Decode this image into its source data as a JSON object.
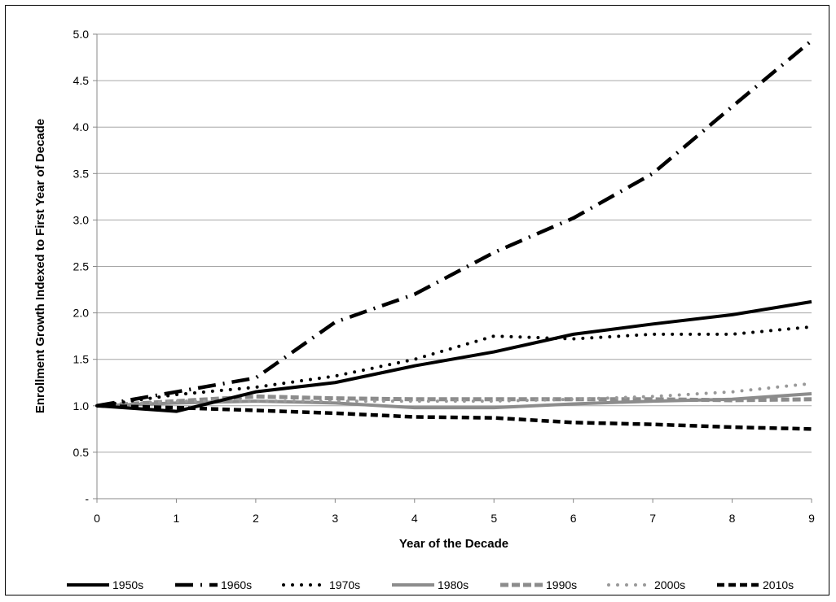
{
  "chart_data": {
    "type": "line",
    "xlabel": "Year of the Decade",
    "ylabel": "Enrollment Growth Indexed to First Year of Decade",
    "x": [
      0,
      1,
      2,
      3,
      4,
      5,
      6,
      7,
      8,
      9
    ],
    "xlim": [
      0,
      9
    ],
    "ylim": [
      0,
      5.0
    ],
    "y_ticks": [
      "-",
      "0.5",
      "1.0",
      "1.5",
      "2.0",
      "2.5",
      "3.0",
      "3.5",
      "4.0",
      "4.5",
      "5.0"
    ],
    "x_ticks": [
      "0",
      "1",
      "2",
      "3",
      "4",
      "5",
      "6",
      "7",
      "8",
      "9"
    ],
    "grid": "horizontal",
    "legend_position": "bottom",
    "series": [
      {
        "name": "1950s",
        "color": "#000000",
        "style": "solid",
        "values": [
          1.0,
          0.94,
          1.15,
          1.25,
          1.43,
          1.58,
          1.77,
          1.88,
          1.98,
          2.12
        ]
      },
      {
        "name": "1960s",
        "color": "#000000",
        "style": "dash-dot",
        "values": [
          1.0,
          1.15,
          1.3,
          1.9,
          2.2,
          2.65,
          3.02,
          3.5,
          4.22,
          4.93
        ]
      },
      {
        "name": "1970s",
        "color": "#000000",
        "style": "dotted",
        "values": [
          1.0,
          1.12,
          1.2,
          1.32,
          1.5,
          1.75,
          1.72,
          1.77,
          1.77,
          1.85
        ]
      },
      {
        "name": "1980s",
        "color": "#8c8c8c",
        "style": "solid",
        "values": [
          1.0,
          1.03,
          1.05,
          1.03,
          0.98,
          0.98,
          1.02,
          1.05,
          1.07,
          1.13
        ]
      },
      {
        "name": "1990s",
        "color": "#8c8c8c",
        "style": "dashed",
        "values": [
          1.0,
          1.05,
          1.1,
          1.08,
          1.07,
          1.07,
          1.07,
          1.07,
          1.06,
          1.07
        ]
      },
      {
        "name": "2000s",
        "color": "#999999",
        "style": "dotted",
        "values": [
          1.0,
          1.05,
          1.05,
          1.05,
          1.05,
          1.05,
          1.07,
          1.1,
          1.15,
          1.24
        ]
      },
      {
        "name": "2010s",
        "color": "#000000",
        "style": "short-dash",
        "values": [
          1.0,
          0.98,
          0.95,
          0.92,
          0.88,
          0.87,
          0.82,
          0.8,
          0.77,
          0.75
        ]
      }
    ]
  }
}
